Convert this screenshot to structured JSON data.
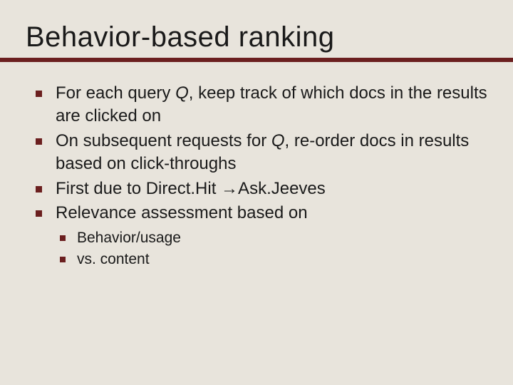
{
  "colors": {
    "background": "#e8e4dc",
    "text": "#1a1a1a",
    "rule": "#6b1f1f",
    "bullet": "#6b1f1f"
  },
  "title": "Behavior-based ranking",
  "bullets": [
    {
      "pre": "For each query ",
      "em": "Q",
      "post": ", keep track of which docs in the results are clicked on"
    },
    {
      "pre": "On subsequent requests for ",
      "em": "Q",
      "post": ", re-order docs in results based on click-throughs"
    },
    {
      "text": "First due to Direct.Hit →Ask.Jeeves"
    },
    {
      "text": "Relevance assessment based on"
    }
  ],
  "subbullets": [
    "Behavior/usage",
    "vs. content"
  ],
  "fontsize": {
    "title": 40,
    "level1": 24,
    "level2": 21
  },
  "rule_height": 6
}
